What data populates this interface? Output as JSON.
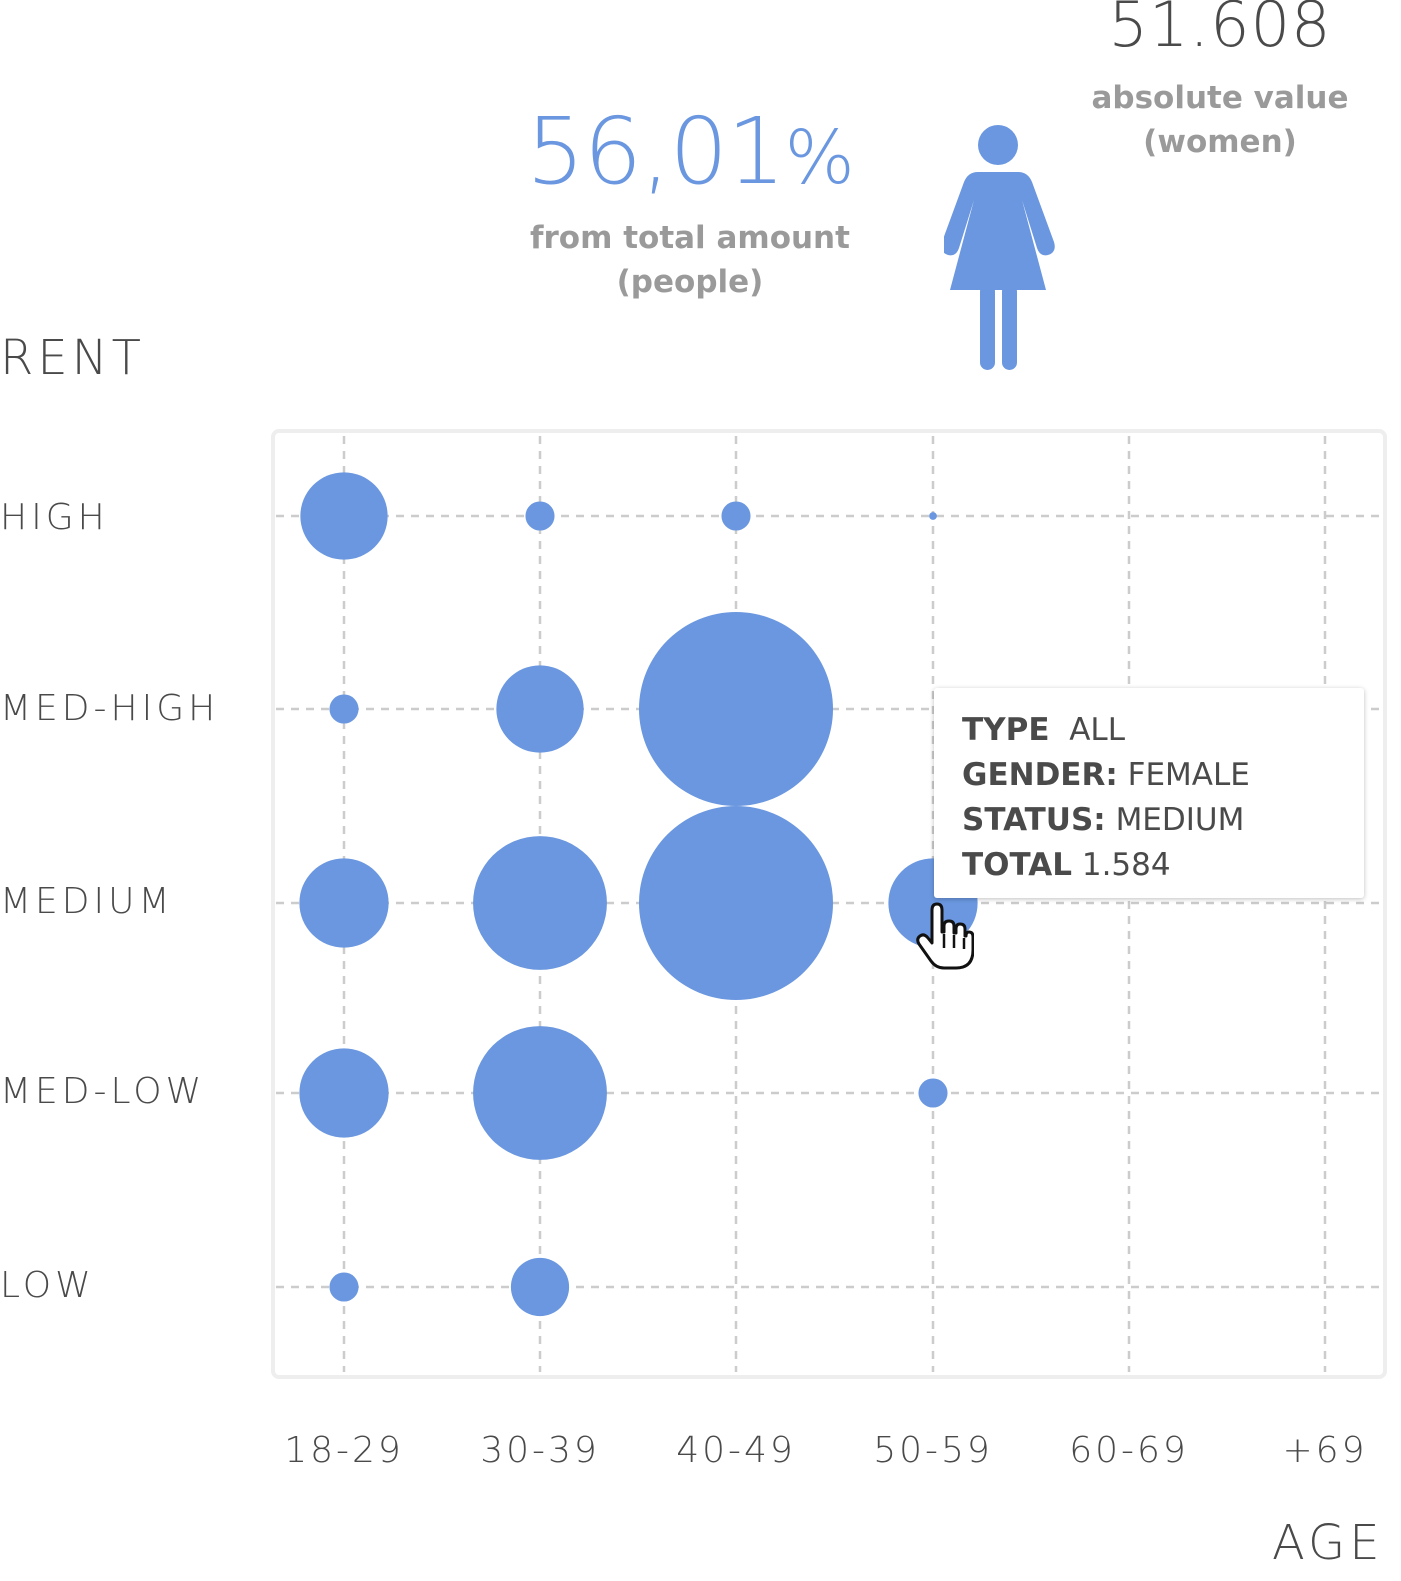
{
  "header": {
    "absolute_value": "51.608",
    "absolute_caption_line1": "absolute value",
    "absolute_caption_line2": "(women)",
    "percentage_number": "56,01",
    "percentage_symbol": "%",
    "percentage_caption_line1": "from total amount",
    "percentage_caption_line2": "(people)",
    "icon": "woman-icon"
  },
  "tooltip": {
    "type_key": "TYPE",
    "type_value": "ALL",
    "gender_key": "GENDER:",
    "gender_value": "FEMALE",
    "status_key": "STATUS:",
    "status_value": "MEDIUM",
    "total_key": "TOTAL",
    "total_value": "1.584"
  },
  "colors": {
    "bubble": "#6a97df",
    "grid": "#cccccc",
    "frame": "#eeeeee",
    "text": "#4a4a4a",
    "caption": "#9a9a9a"
  },
  "chart_data": {
    "type": "scatter",
    "encoding": "bubble",
    "xlabel": "AGE",
    "ylabel": "RENT",
    "x_categories": [
      "18-29",
      "30-39",
      "40-49",
      "50-59",
      "60-69",
      "+69"
    ],
    "y_categories": [
      "HIGH",
      "MED-HIGH",
      "MEDIUM",
      "MED-LOW",
      "LOW"
    ],
    "grid": true,
    "points": [
      {
        "x": "18-29",
        "y": "HIGH",
        "size": 0.45
      },
      {
        "x": "30-39",
        "y": "HIGH",
        "size": 0.15
      },
      {
        "x": "40-49",
        "y": "HIGH",
        "size": 0.15
      },
      {
        "x": "50-59",
        "y": "HIGH",
        "size": 0.04
      },
      {
        "x": "18-29",
        "y": "MED-HIGH",
        "size": 0.15
      },
      {
        "x": "30-39",
        "y": "MED-HIGH",
        "size": 0.45
      },
      {
        "x": "40-49",
        "y": "MED-HIGH",
        "size": 1.0
      },
      {
        "x": "18-29",
        "y": "MEDIUM",
        "size": 0.46
      },
      {
        "x": "30-39",
        "y": "MEDIUM",
        "size": 0.69
      },
      {
        "x": "40-49",
        "y": "MEDIUM",
        "size": 1.0
      },
      {
        "x": "50-59",
        "y": "MEDIUM",
        "size": 0.46,
        "value": "1.584"
      },
      {
        "x": "18-29",
        "y": "MED-LOW",
        "size": 0.46
      },
      {
        "x": "30-39",
        "y": "MED-LOW",
        "size": 0.69
      },
      {
        "x": "50-59",
        "y": "MED-LOW",
        "size": 0.15
      },
      {
        "x": "18-29",
        "y": "LOW",
        "size": 0.15
      },
      {
        "x": "30-39",
        "y": "LOW",
        "size": 0.3
      }
    ]
  }
}
